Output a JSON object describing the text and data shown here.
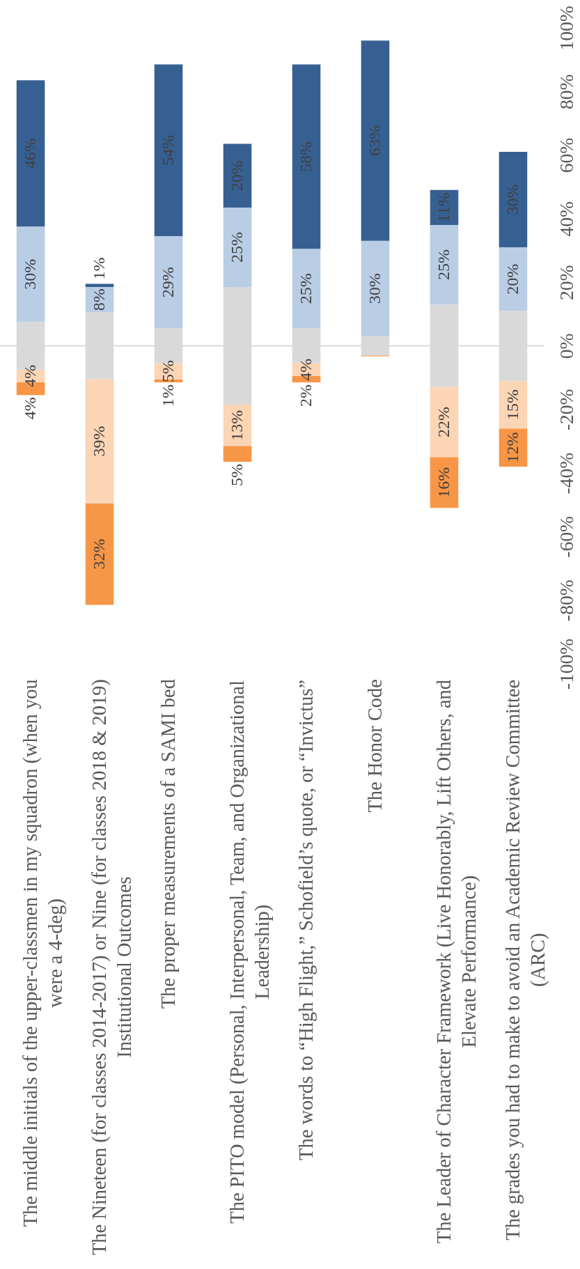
{
  "chart_data": {
    "type": "bar",
    "categories": [
      "The middle initials of the upper-classmen in my squadron (when you were a 4-deg)",
      "The Nineteen (for classes 2014-2017) or Nine (for classes 2018 & 2019) Institutional Outcomes",
      "The proper measurements of a SAMI bed",
      "The PITO model (Personal, Interpersonal, Team, and Organizational Leadership)",
      "The words to “High Flight,” Schofield’s quote, or “Invictus”",
      "The Honor Code",
      "The Leader of Character Framework (Live Honorably, Lift Others, and Elevate Performance)",
      "The grades you had to make to avoid an Academic Review Committee (ARC)"
    ],
    "series": [
      {
        "color": "#f79646",
        "values": [
          4,
          32,
          1,
          5,
          2,
          0.3,
          16,
          12
        ],
        "base": [
          -15.5,
          -81.5,
          -11.5,
          -36.5,
          -11.5,
          -3.3,
          -51,
          -38
        ],
        "value_labels": [
          "4%",
          "32%",
          "1%",
          "5%",
          "2%",
          null,
          "16%",
          "12%"
        ]
      },
      {
        "color": "#fcd5b5",
        "values": [
          4,
          39,
          5,
          13,
          4,
          null,
          22,
          15
        ],
        "base": [
          -11.5,
          -49.5,
          -10.5,
          -31.5,
          -9.5,
          null,
          -35,
          -26
        ],
        "value_labels": [
          "4%",
          "39%",
          "5%",
          "13%",
          "4%",
          null,
          "22%",
          "15%"
        ]
      },
      {
        "color": "#d9d9d9",
        "values": [
          15,
          21,
          11,
          37,
          11,
          6,
          26,
          22
        ],
        "base": [
          -7.5,
          -10.5,
          -5.5,
          -18.5,
          -5.5,
          -3,
          -13,
          -11
        ]
      },
      {
        "color": "#b9cde5",
        "values": [
          30,
          8,
          29,
          25,
          25,
          30,
          25,
          20
        ],
        "base": [
          7.5,
          10.5,
          5.5,
          18.5,
          5.5,
          3,
          13,
          11
        ],
        "value_labels": [
          "30%",
          "8%",
          "29%",
          "25%",
          "25%",
          "30%",
          "25%",
          "20%"
        ]
      },
      {
        "color": "#376092",
        "values": [
          46,
          1,
          54,
          20,
          58,
          63,
          11,
          30
        ],
        "base": [
          37.5,
          18.5,
          34.5,
          43.5,
          30.5,
          33,
          38,
          31
        ],
        "value_labels": [
          "46%",
          "1%",
          "54%",
          "20%",
          "58%",
          "63%",
          "11%",
          "30%"
        ]
      }
    ],
    "ylim": [
      -100,
      100
    ],
    "yticks": [
      {
        "value": -100,
        "label": "-100%"
      },
      {
        "value": -80,
        "label": "-80%"
      },
      {
        "value": -60,
        "label": "-60%"
      },
      {
        "value": -40,
        "label": "-40%"
      },
      {
        "value": -20,
        "label": "-20%"
      },
      {
        "value": 0,
        "label": "0%"
      },
      {
        "value": 20,
        "label": "20%"
      },
      {
        "value": 40,
        "label": "40%"
      },
      {
        "value": 60,
        "label": "60%"
      },
      {
        "value": 80,
        "label": "80%"
      },
      {
        "value": 100,
        "label": "100%"
      }
    ],
    "ref_lines": [
      {
        "axis": "y",
        "value": 0,
        "color": "#d9d9d9"
      }
    ]
  }
}
